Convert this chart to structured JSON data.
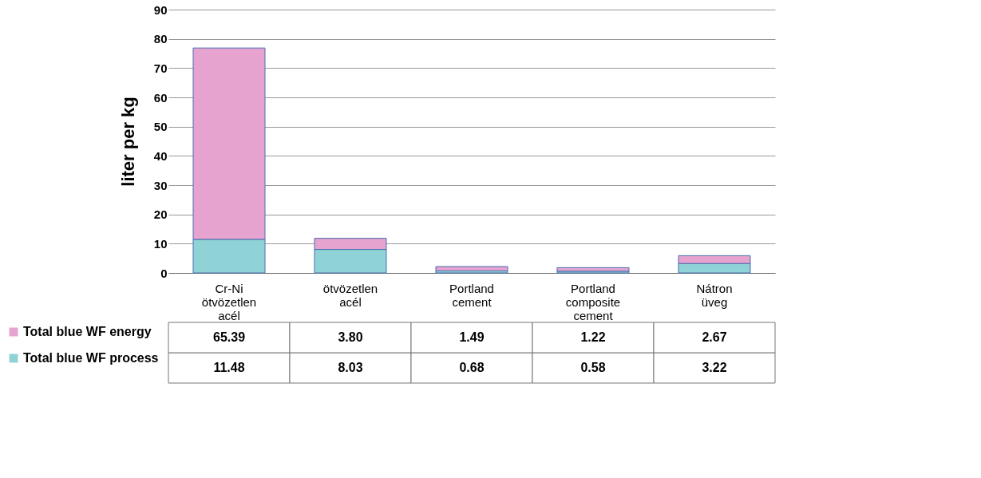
{
  "chart_data": {
    "type": "bar",
    "stacked": true,
    "ylabel": "liter per kg",
    "categories": [
      "Cr-Ni ötvözetlen acél",
      "ötvözetlen acél",
      "Portland cement",
      "Portland composite cement",
      "Nátron üveg"
    ],
    "series": [
      {
        "name": "Total blue WF process",
        "color": "#8fd3d6",
        "values": [
          11.48,
          8.03,
          0.68,
          0.58,
          3.22
        ],
        "value_labels": [
          "11.48",
          "8.03",
          "0.68",
          "0.58",
          "3.22"
        ]
      },
      {
        "name": "Total blue WF energy",
        "color": "#e6a3cf",
        "values": [
          65.39,
          3.8,
          1.49,
          1.22,
          2.67
        ],
        "value_labels": [
          "65.39",
          "3.80",
          "1.49",
          "1.22",
          "2.67"
        ]
      }
    ],
    "ylim": [
      0,
      90
    ],
    "yticks": [
      0,
      10,
      20,
      30,
      40,
      50,
      60,
      70,
      80,
      90
    ],
    "grid": "y",
    "legend": "bottom"
  }
}
